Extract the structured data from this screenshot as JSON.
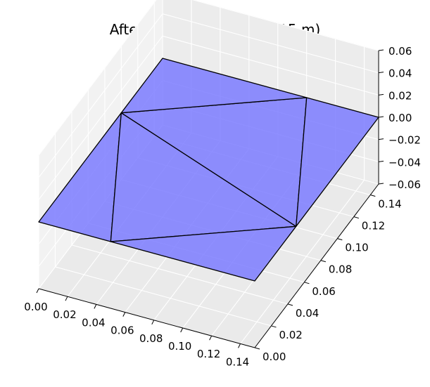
{
  "chart_data": {
    "type": "surface3d",
    "title": "After Deformation (L = .15 m)",
    "xlabel": "",
    "ylabel": "",
    "zlabel": "",
    "xlim": [
      0,
      0.15
    ],
    "ylim": [
      0,
      0.15
    ],
    "zlim": [
      -0.06,
      0.06
    ],
    "x_ticks": [
      "0.00",
      "0.02",
      "0.04",
      "0.06",
      "0.08",
      "0.10",
      "0.12",
      "0.14"
    ],
    "y_ticks": [
      "0.00",
      "0.02",
      "0.04",
      "0.06",
      "0.08",
      "0.10",
      "0.12",
      "0.14"
    ],
    "z_ticks": [
      "−0.06",
      "−0.04",
      "−0.02",
      "0.00",
      "0.02",
      "0.04",
      "0.06"
    ],
    "grid": true,
    "face_color": "#7b7bff",
    "edge_color": "#000000",
    "nodes": [
      {
        "id": "A",
        "x": 0.0,
        "y": 0.0,
        "z": 0.0
      },
      {
        "id": "B",
        "x": 0.15,
        "y": 0.0,
        "z": 0.0
      },
      {
        "id": "C",
        "x": 0.15,
        "y": 0.15,
        "z": 0.0
      },
      {
        "id": "D",
        "x": 0.0,
        "y": 0.15,
        "z": 0.0
      },
      {
        "id": "E",
        "x": 0.05,
        "y": 0.0,
        "z": 0.0
      },
      {
        "id": "F",
        "x": 0.0,
        "y": 0.1,
        "z": 0.0
      },
      {
        "id": "G",
        "x": 0.15,
        "y": 0.05,
        "z": 0.0
      },
      {
        "id": "H",
        "x": 0.1,
        "y": 0.15,
        "z": 0.0
      }
    ],
    "elements": [
      [
        "A",
        "E",
        "F"
      ],
      [
        "E",
        "G",
        "F"
      ],
      [
        "F",
        "G",
        "H"
      ],
      [
        "F",
        "H",
        "D"
      ],
      [
        "E",
        "B",
        "G"
      ],
      [
        "G",
        "C",
        "H"
      ]
    ]
  }
}
